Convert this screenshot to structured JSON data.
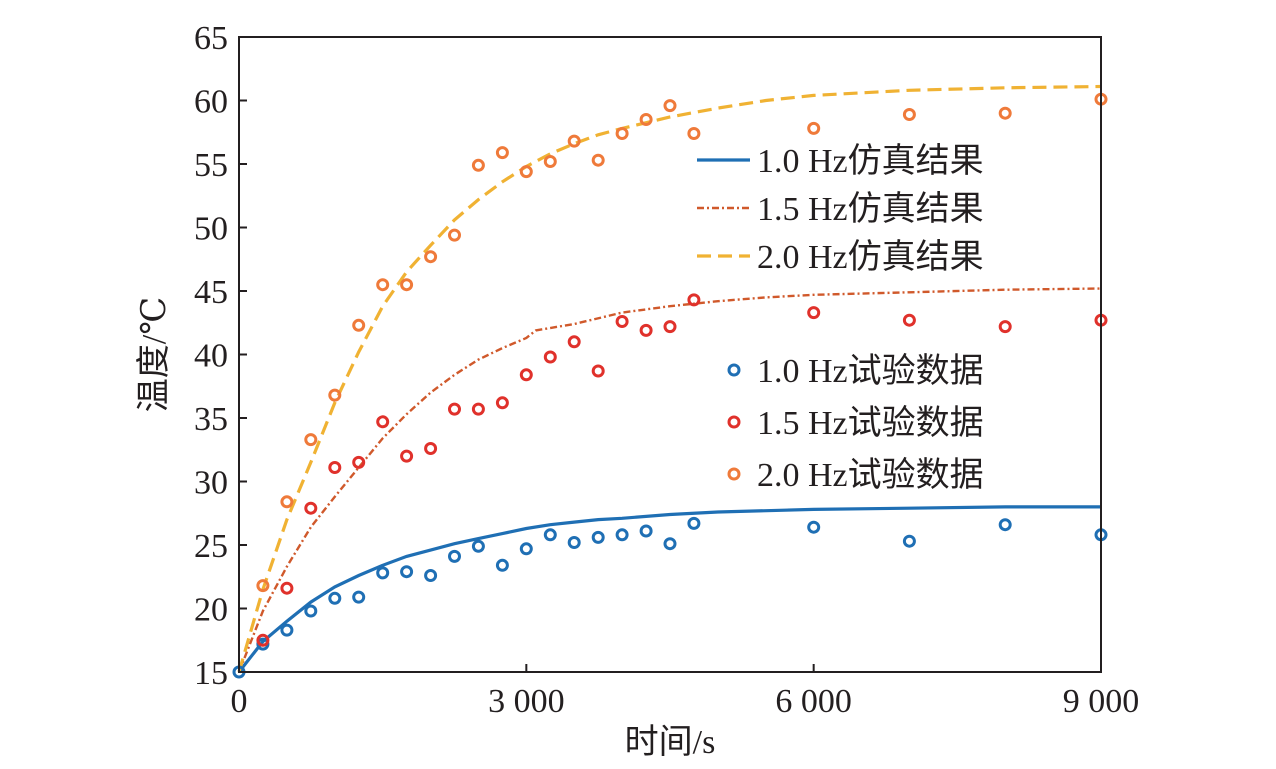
{
  "chart_data": {
    "type": "line",
    "xlabel": "时间/s",
    "ylabel": "温度/℃",
    "xlim": [
      0,
      9000
    ],
    "ylim": [
      15,
      65
    ],
    "x_ticks": [
      0,
      3000,
      6000,
      9000
    ],
    "x_tick_labels": [
      "0",
      "3 000",
      "6 000",
      "9 000"
    ],
    "y_ticks": [
      15,
      20,
      25,
      30,
      35,
      40,
      45,
      50,
      55,
      60,
      65
    ],
    "y_tick_labels": [
      "15",
      "20",
      "25",
      "30",
      "35",
      "40",
      "45",
      "50",
      "55",
      "60",
      "65"
    ],
    "grid": false,
    "legend_placement": "right",
    "lines": [
      {
        "name": "1.0 Hz仿真结果",
        "color": "#1f6fb4",
        "style": "solid",
        "x": [
          0,
          250,
          500,
          750,
          1000,
          1250,
          1500,
          1750,
          2000,
          2250,
          2500,
          2750,
          3000,
          3250,
          3500,
          3750,
          4000,
          4500,
          5000,
          6000,
          7000,
          8000,
          9000
        ],
        "y": [
          15.0,
          17.4,
          19.0,
          20.5,
          21.7,
          22.6,
          23.4,
          24.1,
          24.6,
          25.1,
          25.5,
          25.9,
          26.3,
          26.6,
          26.8,
          27.0,
          27.1,
          27.4,
          27.6,
          27.8,
          27.9,
          28.0,
          28.0
        ]
      },
      {
        "name": "1.5 Hz仿真结果",
        "color": "#d0592b",
        "style": "dashdot",
        "x": [
          0,
          250,
          500,
          750,
          1000,
          1250,
          1500,
          1750,
          2000,
          2250,
          2500,
          2750,
          3000,
          3100,
          3500,
          4000,
          4500,
          5000,
          5500,
          6000,
          7000,
          8000,
          9000
        ],
        "y": [
          15.0,
          19.8,
          23.3,
          26.4,
          28.8,
          31.1,
          33.4,
          35.3,
          37.0,
          38.4,
          39.6,
          40.5,
          41.3,
          41.9,
          42.4,
          43.3,
          43.8,
          44.2,
          44.5,
          44.7,
          44.9,
          45.1,
          45.2
        ]
      },
      {
        "name": "2.0 Hz仿真结果",
        "color": "#f0b233",
        "style": "dashed",
        "x": [
          0,
          250,
          500,
          750,
          1000,
          1250,
          1500,
          1750,
          2000,
          2250,
          2500,
          2750,
          3000,
          3250,
          3500,
          3750,
          4000,
          4500,
          5000,
          5500,
          6000,
          7000,
          8000,
          9000
        ],
        "y": [
          15.0,
          21.5,
          27.0,
          31.5,
          36.2,
          40.2,
          43.8,
          46.5,
          48.6,
          50.6,
          52.2,
          53.6,
          54.8,
          55.8,
          56.6,
          57.3,
          57.8,
          58.7,
          59.4,
          60.0,
          60.4,
          60.8,
          61.0,
          61.1
        ]
      }
    ],
    "scatter": [
      {
        "name": "1.0 Hz试验数据",
        "color": "#1f6fb4",
        "x": [
          0,
          250,
          500,
          750,
          1000,
          1250,
          1500,
          1750,
          2000,
          2250,
          2500,
          2750,
          3000,
          3250,
          3500,
          3750,
          4000,
          4250,
          4500,
          4750,
          6000,
          7000,
          8000,
          9000
        ],
        "y": [
          15.0,
          17.2,
          18.3,
          19.8,
          20.8,
          20.9,
          22.8,
          22.9,
          22.6,
          24.1,
          24.9,
          23.4,
          24.7,
          25.8,
          25.2,
          25.6,
          25.8,
          26.1,
          25.1,
          26.7,
          26.4,
          25.3,
          26.6,
          25.8
        ]
      },
      {
        "name": "1.5 Hz试验数据",
        "color": "#e0312b",
        "x": [
          250,
          500,
          750,
          1000,
          1250,
          1500,
          1750,
          2000,
          2250,
          2500,
          2750,
          3000,
          3250,
          3500,
          3750,
          4000,
          4250,
          4500,
          4750,
          6000,
          7000,
          8000,
          9000
        ],
        "y": [
          17.5,
          21.6,
          27.9,
          31.1,
          31.5,
          34.7,
          32.0,
          32.6,
          35.7,
          35.7,
          36.2,
          38.4,
          39.8,
          41.0,
          38.7,
          42.6,
          41.9,
          42.2,
          44.3,
          43.3,
          42.7,
          42.2,
          42.7
        ]
      },
      {
        "name": "2.0 Hz试验数据",
        "color": "#ef7a3a",
        "x": [
          250,
          500,
          750,
          1000,
          1250,
          1500,
          1750,
          2000,
          2250,
          2500,
          2750,
          3000,
          3250,
          3500,
          3750,
          4000,
          4250,
          4500,
          4750,
          6000,
          7000,
          8000,
          9000
        ],
        "y": [
          21.8,
          28.4,
          33.3,
          36.8,
          42.3,
          45.5,
          45.5,
          47.7,
          49.4,
          54.9,
          55.9,
          54.4,
          55.2,
          56.8,
          55.3,
          57.4,
          58.5,
          59.6,
          57.4,
          57.8,
          58.9,
          59.0,
          60.1
        ]
      }
    ]
  }
}
